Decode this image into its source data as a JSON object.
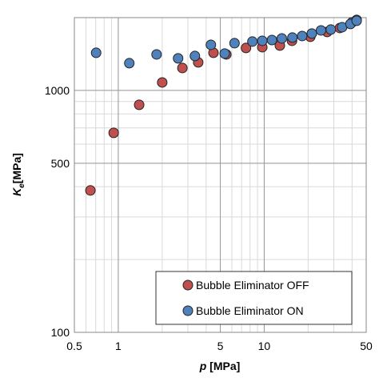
{
  "chart_data": {
    "type": "scatter",
    "xlabel": {
      "symbol": "p",
      "unit": "[MPa]"
    },
    "ylabel": {
      "symbol": "K",
      "subscript": "e",
      "unit": "[MPa]"
    },
    "xscale": "log",
    "yscale": "log",
    "xlim": [
      0.5,
      50
    ],
    "ylim": [
      100,
      2000
    ],
    "xticks": [
      0.5,
      1,
      5,
      10,
      50
    ],
    "yticks": [
      100,
      500,
      1000
    ],
    "grid": true,
    "minor_grid": true,
    "legend": "lower right",
    "series": [
      {
        "name": "Bubble Eliminator OFF",
        "color": "#c0504d",
        "x": [
          0.644,
          0.93,
          1.39,
          2.0,
          2.75,
          3.53,
          4.49,
          5.5,
          7.5,
          9.7,
          12.8,
          15.5,
          20.7,
          27,
          33,
          40,
          43
        ],
        "values": [
          386,
          668,
          872,
          1079,
          1238,
          1306,
          1431,
          1409,
          1498,
          1509,
          1533,
          1604,
          1667,
          1745,
          1812,
          1912,
          1957
        ]
      },
      {
        "name": "Bubble Eliminator ON",
        "color": "#4f81bd",
        "x": [
          0.705,
          1.19,
          1.83,
          2.57,
          3.35,
          4.31,
          5.36,
          6.26,
          8.3,
          9.7,
          11.3,
          13.2,
          15.6,
          18.2,
          21.2,
          24.5,
          28.6,
          34.2,
          39,
          43
        ],
        "values": [
          1431,
          1296,
          1409,
          1357,
          1388,
          1544,
          1420,
          1568,
          1592,
          1604,
          1616,
          1641,
          1654,
          1679,
          1719,
          1771,
          1785,
          1826,
          1883,
          1942
        ]
      }
    ]
  }
}
